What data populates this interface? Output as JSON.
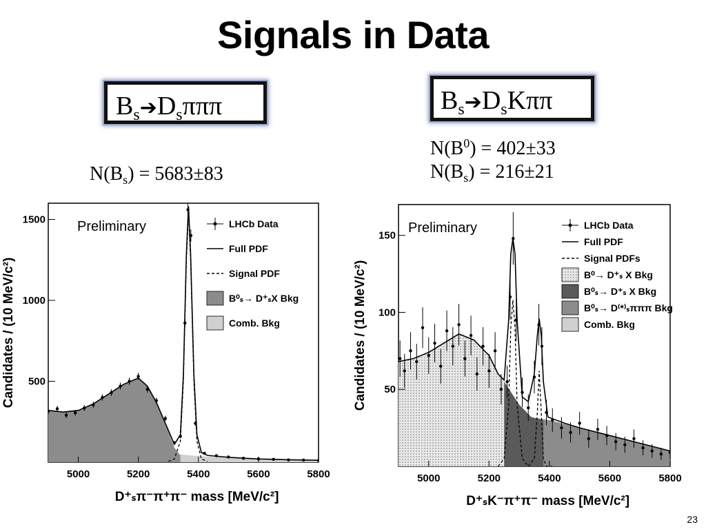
{
  "slide": {
    "title": "Signals in Data",
    "page_number": "23"
  },
  "left": {
    "decay": {
      "B": "B",
      "sub1": "s",
      "arrow": "➔",
      "D": "D",
      "sub2": "s",
      "rest": "πππ"
    },
    "yield_lines": [
      {
        "prefix": "N(B",
        "sub": "s",
        "suffix": ") = 5683±83"
      }
    ]
  },
  "right": {
    "decay": {
      "B": "B",
      "sub1": "s",
      "arrow": "➔",
      "D": "D",
      "sub2": "s",
      "rest": "Kππ"
    },
    "yield_lines": [
      {
        "prefix": "N(B",
        "sup": "0",
        "suffix": ") = 402±33"
      },
      {
        "prefix": "N(B",
        "sub": "s",
        "suffix": ") = 216±21"
      }
    ]
  },
  "chart_data": [
    {
      "type": "line",
      "annotation": "Preliminary",
      "ylabel": "Candidates / (10 MeV/c²)",
      "xlabel": "D⁺ₛπ⁻π⁺π⁻ mass [MeV/c²]",
      "xlim": [
        4900,
        5800
      ],
      "ylim": [
        0,
        1600
      ],
      "xticks": [
        5000,
        5200,
        5400,
        5600,
        5800
      ],
      "yticks": [
        500,
        1000,
        1500
      ],
      "legend_position": "top-right",
      "legend": [
        "LHCb Data",
        "Full PDF",
        "Signal PDF",
        "B⁰ₛ→ D⁺ₛX Bkg",
        "Comb. Bkg"
      ],
      "series": [
        {
          "name": "Comb. Bkg",
          "kind": "area",
          "color": "#d0d0d0",
          "x": [
            4900,
            5000,
            5100,
            5200,
            5300,
            5400,
            5500,
            5600,
            5700,
            5800
          ],
          "y": [
            250,
            178,
            125,
            85,
            55,
            38,
            28,
            20,
            15,
            12
          ]
        },
        {
          "name": "B⁰ₛ→ D⁺ₛX Bkg",
          "kind": "area",
          "color": "#8c8c8c",
          "x": [
            4900,
            4950,
            5000,
            5050,
            5100,
            5150,
            5200,
            5230,
            5260,
            5290,
            5320,
            5340
          ],
          "y": [
            320,
            310,
            320,
            360,
            420,
            480,
            520,
            470,
            370,
            240,
            90,
            40
          ]
        },
        {
          "name": "Signal PDF",
          "kind": "dash",
          "color": "#000",
          "x": [
            5300,
            5320,
            5340,
            5350,
            5360,
            5367,
            5374,
            5385,
            5395,
            5410,
            5430
          ],
          "y": [
            5,
            20,
            130,
            500,
            1250,
            1540,
            1250,
            500,
            130,
            20,
            5
          ]
        },
        {
          "name": "Full PDF",
          "kind": "line",
          "color": "#000",
          "x": [
            4900,
            4950,
            5000,
            5050,
            5100,
            5150,
            5200,
            5230,
            5260,
            5290,
            5320,
            5340,
            5350,
            5360,
            5367,
            5374,
            5385,
            5395,
            5410,
            5430,
            5500,
            5600,
            5700,
            5800
          ],
          "y": [
            320,
            310,
            320,
            360,
            420,
            480,
            520,
            470,
            370,
            240,
            110,
            170,
            540,
            1290,
            1580,
            1290,
            540,
            170,
            60,
            42,
            30,
            20,
            15,
            12
          ]
        },
        {
          "name": "LHCb Data",
          "kind": "points",
          "color": "#000",
          "x": [
            4900,
            4930,
            4960,
            4990,
            5020,
            5050,
            5080,
            5110,
            5140,
            5170,
            5200,
            5230,
            5260,
            5290,
            5320,
            5340,
            5355,
            5365,
            5375,
            5390,
            5420,
            5460,
            5500,
            5550,
            5600,
            5650,
            5700,
            5750,
            5800
          ],
          "y": [
            315,
            330,
            290,
            305,
            335,
            355,
            400,
            430,
            470,
            500,
            530,
            450,
            380,
            270,
            120,
            160,
            860,
            1560,
            1400,
            240,
            55,
            40,
            32,
            24,
            20,
            18,
            14,
            13,
            11
          ]
        }
      ]
    },
    {
      "type": "line",
      "annotation": "Preliminary",
      "ylabel": "Candidates / (10 MeV/c²)",
      "xlabel": "D⁺ₛK⁻π⁺π⁻ mass [MeV/c²]",
      "xlim": [
        4900,
        5800
      ],
      "ylim": [
        0,
        170
      ],
      "xticks": [
        5000,
        5200,
        5400,
        5600,
        5800
      ],
      "yticks": [
        50,
        100,
        150
      ],
      "legend_position": "top-right",
      "legend": [
        "LHCb Data",
        "Full PDF",
        "Signal PDFs",
        "B⁰→ D⁺ₛ X Bkg",
        "B⁰ₛ→ D⁺ₛ X Bkg",
        "B⁰ₛ→ D⁽*⁾ₛπππ Bkg",
        "Comb. Bkg"
      ],
      "series": [
        {
          "name": "Comb. Bkg",
          "kind": "area",
          "color": "#d0d0d0",
          "x": [
            4900,
            5000,
            5100,
            5200,
            5300,
            5400,
            5500,
            5600,
            5700,
            5800
          ],
          "y": [
            62,
            48,
            37,
            28,
            21,
            16,
            13,
            10,
            8,
            7
          ]
        },
        {
          "name": "B⁰ₛ→ D⁽*⁾ₛπππ Bkg",
          "kind": "area",
          "color": "#8c8c8c",
          "x": [
            4900,
            5000,
            5100,
            5200,
            5300,
            5400,
            5500,
            5600,
            5700,
            5800
          ],
          "y": [
            64,
            52,
            43,
            37,
            33,
            30,
            25,
            20,
            15,
            10
          ]
        },
        {
          "name": "B⁰ₛ→ D⁺ₛ X Bkg",
          "kind": "area",
          "color": "#5a5a5a",
          "x": [
            4900,
            5000,
            5050,
            5100,
            5150,
            5200,
            5250,
            5300,
            5340,
            5380
          ],
          "y": [
            64,
            60,
            60,
            65,
            67,
            65,
            55,
            40,
            32,
            30
          ]
        },
        {
          "name": "B⁰→ D⁺ₛ X Bkg",
          "kind": "area",
          "color": "#e4e4e4",
          "x": [
            4900,
            4950,
            5000,
            5050,
            5100,
            5150,
            5200,
            5230,
            5250
          ],
          "y": [
            68,
            70,
            74,
            80,
            86,
            82,
            72,
            60,
            55
          ]
        },
        {
          "name": "Signal PDFs",
          "kind": "dash",
          "color": "#000",
          "x": [
            5230,
            5250,
            5265,
            5272,
            5279,
            5286,
            5293,
            5310,
            5330,
            5350,
            5360,
            5366,
            5373,
            5380,
            5390,
            5410
          ],
          "y": [
            0,
            5,
            40,
            90,
            108,
            90,
            40,
            5,
            0,
            5,
            35,
            62,
            35,
            5,
            0,
            0
          ]
        },
        {
          "name": "Full PDF",
          "kind": "line",
          "color": "#000",
          "x": [
            4900,
            4950,
            5000,
            5050,
            5100,
            5150,
            5200,
            5230,
            5250,
            5265,
            5272,
            5279,
            5286,
            5293,
            5310,
            5330,
            5350,
            5360,
            5366,
            5373,
            5380,
            5395,
            5450,
            5500,
            5600,
            5700,
            5800
          ],
          "y": [
            68,
            70,
            74,
            80,
            86,
            82,
            72,
            60,
            56,
            95,
            138,
            148,
            138,
            95,
            45,
            42,
            60,
            85,
            96,
            85,
            55,
            32,
            28,
            25,
            20,
            15,
            10
          ]
        },
        {
          "name": "LHCb Data",
          "kind": "points",
          "color": "#000",
          "x": [
            4905,
            4920,
            4940,
            4960,
            4980,
            5000,
            5020,
            5040,
            5060,
            5080,
            5100,
            5120,
            5140,
            5160,
            5180,
            5200,
            5220,
            5240,
            5260,
            5270,
            5280,
            5290,
            5310,
            5330,
            5350,
            5365,
            5375,
            5390,
            5410,
            5440,
            5470,
            5500,
            5530,
            5560,
            5590,
            5620,
            5650,
            5680,
            5710,
            5740,
            5770,
            5800
          ],
          "y": [
            70,
            62,
            75,
            68,
            90,
            72,
            80,
            65,
            88,
            78,
            92,
            70,
            85,
            60,
            78,
            62,
            75,
            50,
            55,
            110,
            148,
            95,
            48,
            38,
            58,
            92,
            78,
            35,
            30,
            25,
            22,
            28,
            18,
            24,
            20,
            16,
            14,
            18,
            12,
            10,
            8,
            9
          ]
        }
      ]
    }
  ]
}
